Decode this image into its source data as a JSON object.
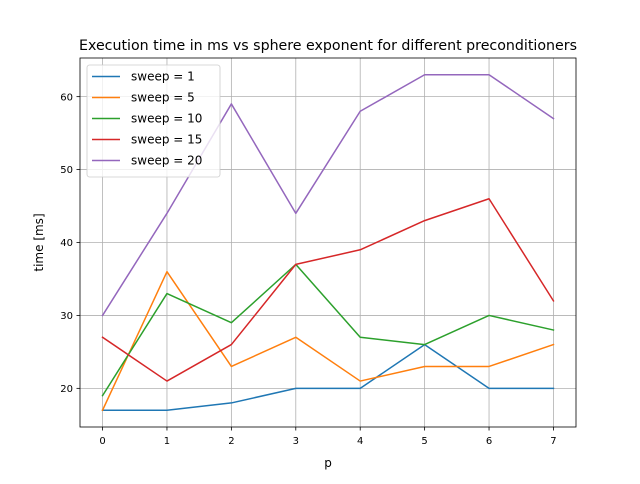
{
  "chart_data": {
    "type": "line",
    "title": "Execution time in ms vs sphere exponent for different preconditioners",
    "xlabel": "p",
    "ylabel": "time [ms]",
    "x": [
      0,
      1,
      2,
      3,
      4,
      5,
      6,
      7
    ],
    "xlim": [
      -0.35,
      7.35
    ],
    "ylim": [
      14.7,
      65.3
    ],
    "xticks": [
      0,
      1,
      2,
      3,
      4,
      5,
      6,
      7
    ],
    "yticks": [
      20,
      30,
      40,
      50,
      60
    ],
    "grid": true,
    "legend_position": "top-left",
    "series": [
      {
        "name": "sweep = 1",
        "color": "#1f77b4",
        "values": [
          17,
          17,
          18,
          20,
          20,
          26,
          20,
          20
        ]
      },
      {
        "name": "sweep = 5",
        "color": "#ff7f0e",
        "values": [
          17,
          36,
          23,
          27,
          21,
          23,
          23,
          26
        ]
      },
      {
        "name": "sweep = 10",
        "color": "#2ca02c",
        "values": [
          19,
          33,
          29,
          37,
          27,
          26,
          30,
          28
        ]
      },
      {
        "name": "sweep = 15",
        "color": "#d62728",
        "values": [
          27,
          21,
          26,
          37,
          39,
          43,
          46,
          32
        ]
      },
      {
        "name": "sweep = 20",
        "color": "#9467bd",
        "values": [
          30,
          44,
          59,
          44,
          58,
          63,
          63,
          57
        ]
      }
    ]
  }
}
